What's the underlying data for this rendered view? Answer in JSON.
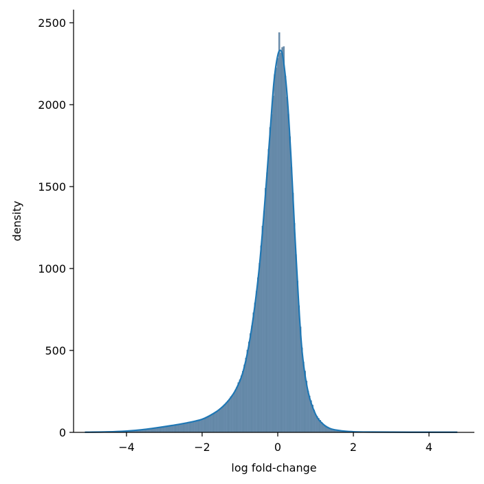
{
  "chart_data": {
    "type": "histogram",
    "xlabel": "log fold-change",
    "ylabel": "density",
    "xlim": [
      -5.4,
      5.2
    ],
    "ylim": [
      0,
      2580
    ],
    "xticks": [
      {
        "value": -4,
        "label": "−4"
      },
      {
        "value": -2,
        "label": "−2"
      },
      {
        "value": 0,
        "label": "0"
      },
      {
        "value": 2,
        "label": "2"
      },
      {
        "value": 4,
        "label": "4"
      }
    ],
    "yticks": [
      {
        "value": 0,
        "label": "0"
      },
      {
        "value": 500,
        "label": "500"
      },
      {
        "value": 1000,
        "label": "1000"
      },
      {
        "value": 1500,
        "label": "1500"
      },
      {
        "value": 2000,
        "label": "2000"
      },
      {
        "value": 2500,
        "label": "2500"
      }
    ],
    "grid": false,
    "legend": "none",
    "bar_color": "#6b8fae",
    "bar_edge_color": "#4f7393",
    "kde_color": "#1f77b4",
    "histogram": {
      "range": [
        -5.1,
        4.75
      ],
      "bin_width": 0.04,
      "shape_points": [
        [
          -5.1,
          1
        ],
        [
          -4.5,
          3
        ],
        [
          -4.0,
          8
        ],
        [
          -3.6,
          16
        ],
        [
          -3.2,
          28
        ],
        [
          -2.8,
          42
        ],
        [
          -2.4,
          58
        ],
        [
          -2.0,
          80
        ],
        [
          -1.7,
          115
        ],
        [
          -1.5,
          148
        ],
        [
          -1.3,
          195
        ],
        [
          -1.1,
          265
        ],
        [
          -0.9,
          385
        ],
        [
          -0.7,
          620
        ],
        [
          -0.5,
          980
        ],
        [
          -0.35,
          1380
        ],
        [
          -0.2,
          1840
        ],
        [
          -0.1,
          2140
        ],
        [
          0.0,
          2300
        ],
        [
          0.08,
          2330
        ],
        [
          0.15,
          2270
        ],
        [
          0.25,
          2050
        ],
        [
          0.35,
          1680
        ],
        [
          0.45,
          1220
        ],
        [
          0.55,
          800
        ],
        [
          0.65,
          480
        ],
        [
          0.8,
          250
        ],
        [
          1.0,
          110
        ],
        [
          1.2,
          50
        ],
        [
          1.4,
          22
        ],
        [
          1.7,
          9
        ],
        [
          2.0,
          4
        ],
        [
          2.5,
          2
        ],
        [
          3.5,
          1
        ],
        [
          4.75,
          1
        ]
      ],
      "spikes": [
        {
          "x": 0.04,
          "value": 2440
        },
        {
          "x": 0.16,
          "value": 2355
        },
        {
          "x": 0.12,
          "value": 2350
        }
      ]
    },
    "kde": {
      "x": [
        -5.1,
        -4.5,
        -4.0,
        -3.6,
        -3.2,
        -2.8,
        -2.4,
        -2.0,
        -1.7,
        -1.5,
        -1.3,
        -1.1,
        -0.9,
        -0.7,
        -0.5,
        -0.35,
        -0.2,
        -0.1,
        0.0,
        0.08,
        0.15,
        0.25,
        0.35,
        0.45,
        0.55,
        0.65,
        0.8,
        1.0,
        1.2,
        1.4,
        1.7,
        2.0,
        2.5,
        3.5,
        4.75
      ],
      "y": [
        1,
        3,
        8,
        16,
        28,
        42,
        58,
        80,
        115,
        148,
        195,
        265,
        385,
        620,
        980,
        1380,
        1840,
        2140,
        2300,
        2330,
        2270,
        2050,
        1680,
        1220,
        800,
        480,
        250,
        110,
        50,
        22,
        9,
        4,
        2,
        1,
        1
      ]
    }
  }
}
